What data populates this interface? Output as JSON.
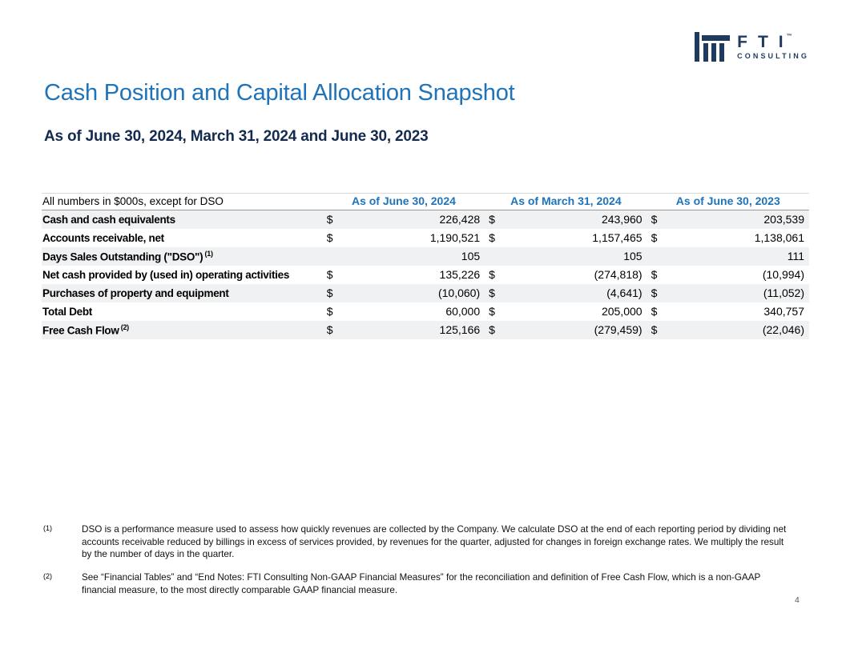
{
  "logo": {
    "brand": "FTI",
    "tm": "™",
    "sub": "CONSULTING",
    "color": "#1E3A5F"
  },
  "header": {
    "title": "Cash Position and Capital Allocation Snapshot",
    "subtitle": "As of June 30, 2024, March 31, 2024 and June 30, 2023",
    "title_color": "#1E73B9"
  },
  "table": {
    "caption": "All numbers in $000s, except for DSO",
    "currency_symbol": "$",
    "columns": [
      "As of June 30, 2024",
      "As of March 31, 2024",
      "As of June 30, 2023"
    ],
    "rows": [
      {
        "label": "Cash and cash equivalents",
        "sup": "",
        "currency": true,
        "values": [
          "226,428",
          "243,960",
          "203,539"
        ],
        "shaded": true
      },
      {
        "label": "Accounts receivable, net",
        "sup": "",
        "currency": true,
        "values": [
          "1,190,521",
          "1,157,465",
          "1,138,061"
        ],
        "shaded": false
      },
      {
        "label": "Days Sales Outstanding (\"DSO\")",
        "sup": "(1)",
        "currency": false,
        "values": [
          "105",
          "105",
          "111"
        ],
        "shaded": true
      },
      {
        "label": "Net cash provided by (used in) operating activities",
        "sup": "",
        "currency": true,
        "values": [
          "135,226",
          "(274,818)",
          "(10,994)"
        ],
        "shaded": false
      },
      {
        "label": "Purchases of property and equipment",
        "sup": "",
        "currency": true,
        "values": [
          "(10,060)",
          "(4,641)",
          "(11,052)"
        ],
        "shaded": true
      },
      {
        "label": "Total Debt",
        "sup": "",
        "currency": true,
        "values": [
          "60,000",
          "205,000",
          "340,757"
        ],
        "shaded": false
      },
      {
        "label": "Free Cash Flow",
        "sup": "(2)",
        "currency": true,
        "values": [
          "125,166",
          "(279,459)",
          "(22,046)"
        ],
        "shaded": true
      }
    ]
  },
  "footnotes": [
    {
      "marker": "(1)",
      "text": "DSO is a performance measure used to assess how quickly revenues are collected by the Company. We calculate DSO at the end of each reporting period by dividing net accounts receivable reduced by billings in excess of services provided, by revenues for the quarter, adjusted for changes in foreign exchange rates. We multiply the result by the number of days in the quarter."
    },
    {
      "marker": "(2)",
      "text": "See “Financial Tables” and “End Notes: FTI Consulting Non-GAAP Financial Measures” for the reconciliation and definition of Free Cash Flow, which is a non-GAAP financial measure, to the most directly comparable GAAP financial measure."
    }
  ],
  "page": {
    "number": "4"
  }
}
